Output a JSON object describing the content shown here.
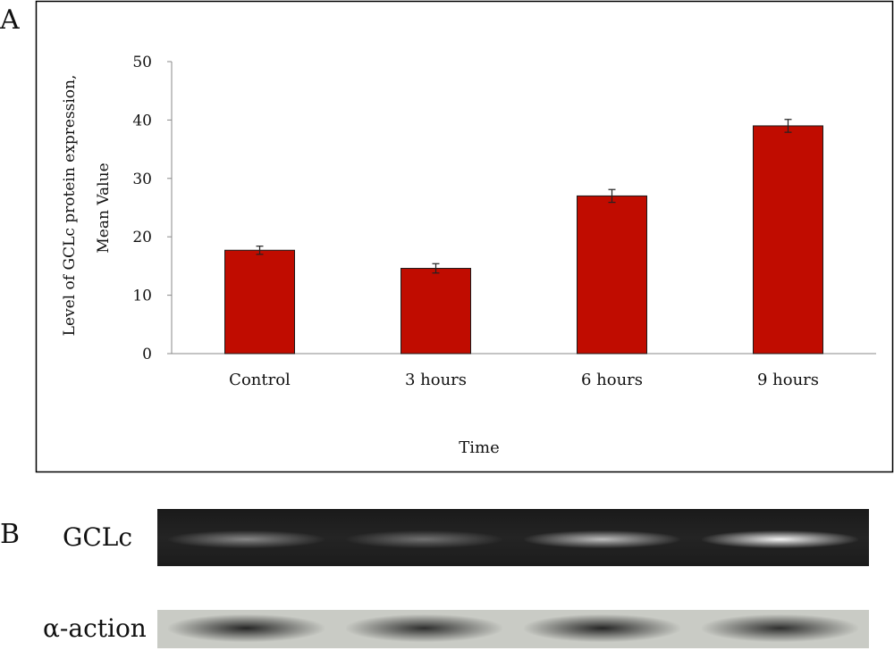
{
  "panel_a_label": "A",
  "panel_b_label": "B",
  "chart_data": {
    "type": "bar",
    "categories": [
      "Control",
      "3 hours",
      "6 hours",
      "9 hours"
    ],
    "values": [
      17.7,
      14.6,
      27.0,
      39.0
    ],
    "errors": [
      0.7,
      0.8,
      1.1,
      1.1
    ],
    "title": "",
    "xlabel": "Time",
    "ylabel": [
      "Level of GCLc protein expression,",
      "Mean Value"
    ],
    "ylim": [
      0,
      50
    ],
    "yticks": [
      0,
      10,
      20,
      30,
      40,
      50
    ],
    "grid": false,
    "legend": "none",
    "bar_color": "#c00c00"
  },
  "blot": {
    "gclc_label": "GCLc",
    "actin_label": "α-action",
    "gclc_band_intensity": [
      0.45,
      0.35,
      0.7,
      0.95
    ],
    "actin_band_intensity": [
      0.9,
      0.85,
      0.9,
      0.85
    ],
    "gclc_color": "#ffffff",
    "actin_color": "#141414"
  }
}
